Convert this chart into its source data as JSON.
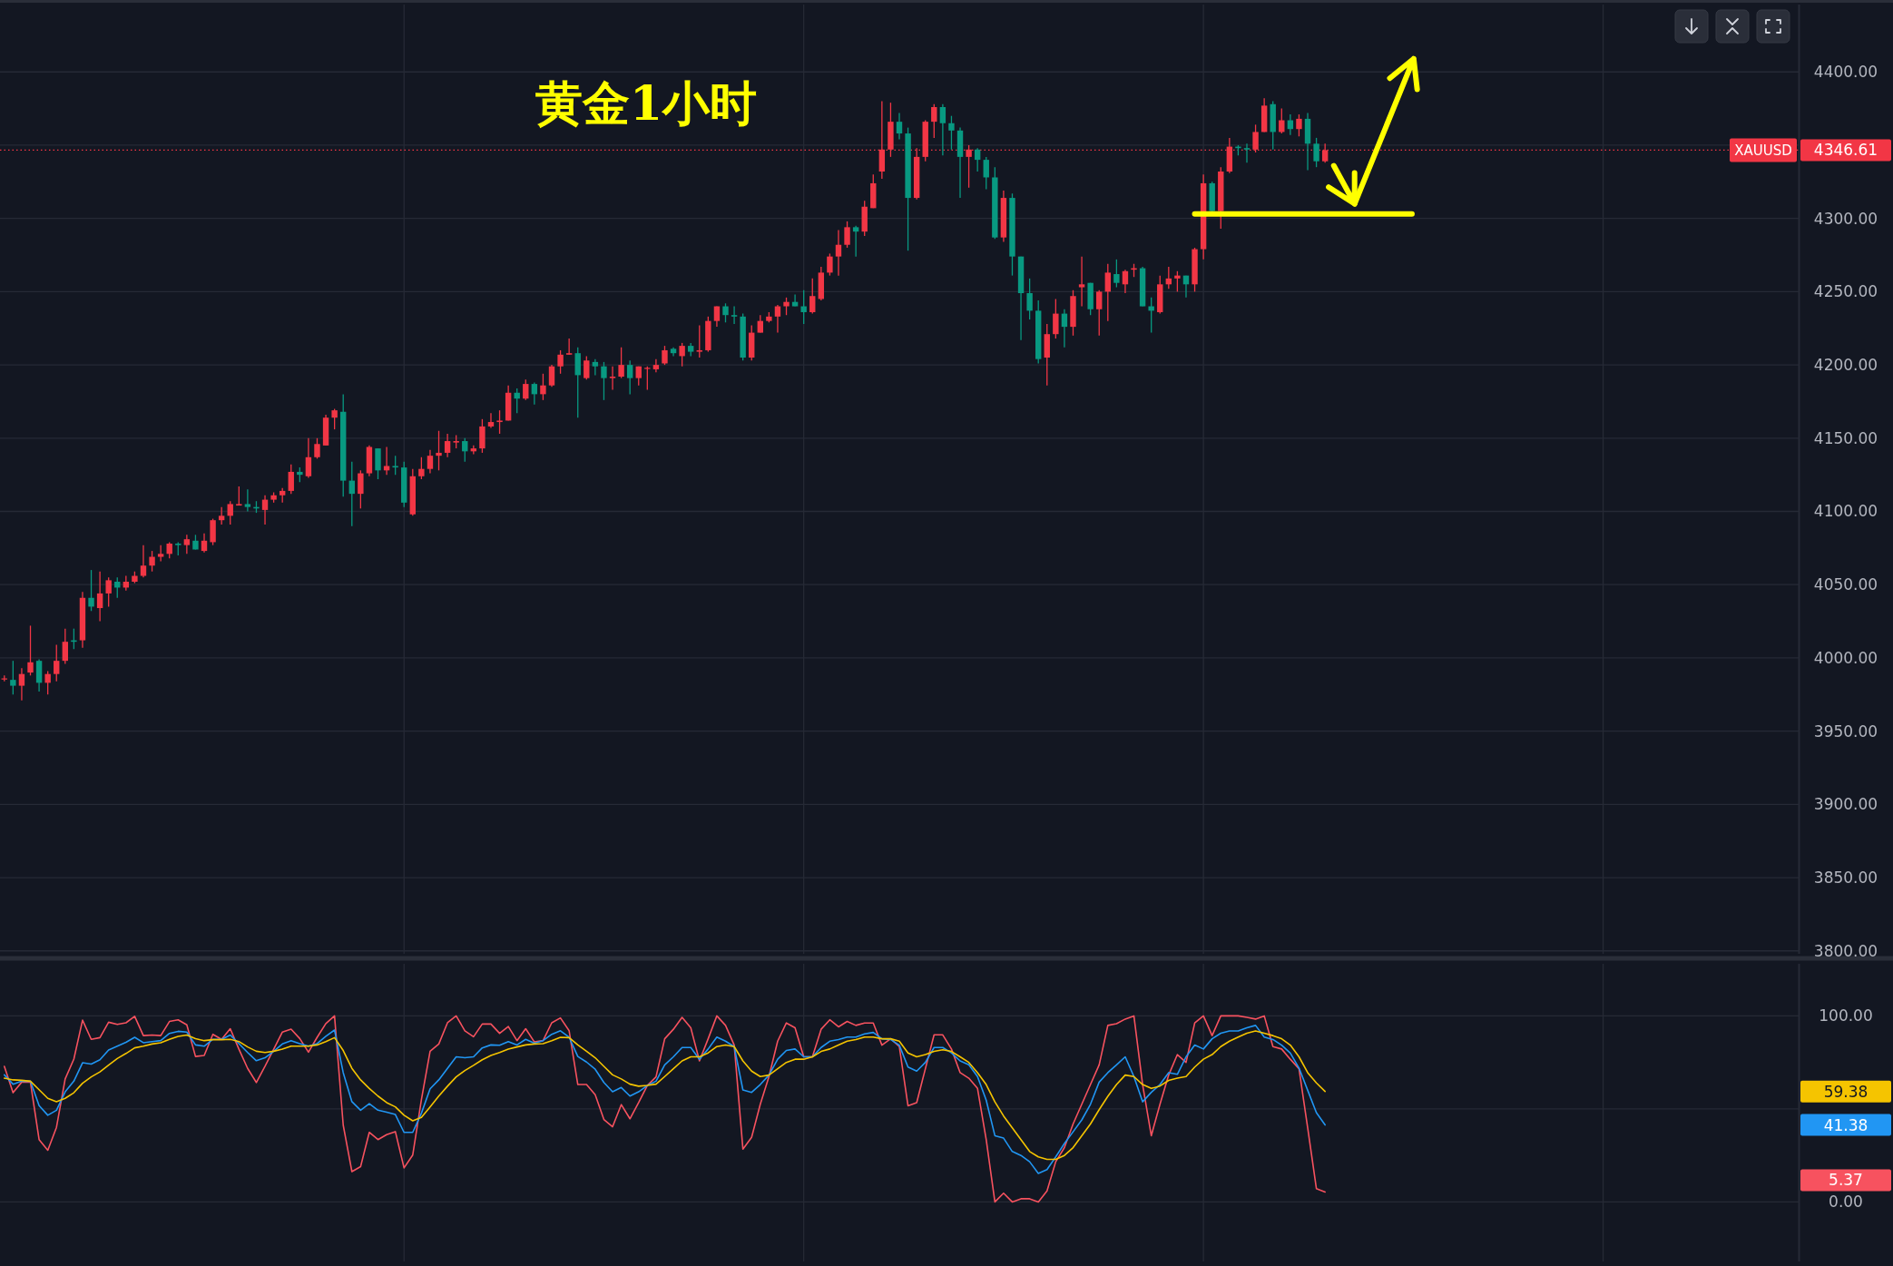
{
  "chart_data": [
    {
      "type": "candlestick",
      "title": "黄金1小时",
      "tick_labels": "y",
      "grid": true,
      "categories": [
        null,
        null,
        null,
        null,
        null,
        null,
        null,
        null,
        null,
        null,
        null,
        null,
        null,
        null,
        null,
        null,
        null,
        null,
        null,
        null,
        null,
        null,
        null,
        null,
        null,
        null,
        null,
        null,
        null,
        null,
        null,
        null,
        null,
        null,
        null,
        null,
        null,
        null,
        null,
        null,
        null,
        null,
        null,
        null,
        null,
        null,
        null,
        null,
        null,
        null,
        null,
        null,
        null,
        null,
        null,
        null,
        null,
        null,
        null,
        null,
        null,
        null,
        null,
        null,
        null,
        null,
        null,
        null,
        null,
        null,
        null,
        null,
        null,
        null,
        null,
        null,
        null,
        null,
        null,
        null,
        null,
        null,
        null,
        null,
        null,
        null,
        null,
        null,
        null,
        null,
        null,
        null,
        null,
        null,
        null,
        null,
        null,
        null,
        null,
        null,
        null,
        null,
        null,
        null,
        null,
        null,
        null,
        null,
        null,
        null,
        null,
        null,
        null,
        null,
        null,
        null,
        null,
        null,
        null,
        null,
        null,
        null,
        null,
        null,
        null,
        null,
        null,
        null,
        null,
        null,
        null,
        null,
        null,
        null,
        null,
        null,
        null,
        null,
        null,
        null,
        null,
        null,
        null,
        null,
        null,
        null,
        null,
        null,
        null,
        null,
        null,
        null,
        null,
        null,
        null,
        null,
        null,
        null,
        null,
        null,
        null,
        null,
        null,
        null,
        null,
        null,
        null,
        null,
        null,
        null,
        null,
        null,
        null,
        null,
        null,
        null,
        null,
        null,
        null,
        null,
        null,
        null,
        null,
        null,
        null,
        null,
        null,
        null,
        null,
        null,
        null,
        null,
        null,
        null,
        null,
        null,
        null,
        null,
        null,
        null,
        null,
        null,
        null,
        null,
        null,
        null,
        null
      ],
      "ohlc": [
        [
          3986,
          3988,
          3984,
          3986
        ],
        [
          3985,
          3998,
          3975,
          3981
        ],
        [
          3981,
          3993,
          3971,
          3989
        ],
        [
          3990,
          4022,
          3988,
          3997
        ],
        [
          3998,
          3999,
          3977,
          3983
        ],
        [
          3983,
          3991,
          3975,
          3989
        ],
        [
          3989,
          4009,
          3984,
          3998
        ],
        [
          3998,
          4020,
          3996,
          4011
        ],
        [
          4012,
          4020,
          4006,
          4011
        ],
        [
          4012,
          4045,
          4007,
          4041
        ],
        [
          4041,
          4060,
          4032,
          4035
        ],
        [
          4034,
          4059,
          4025,
          4044
        ],
        [
          4044,
          4055,
          4035,
          4053
        ],
        [
          4052,
          4055,
          4041,
          4048
        ],
        [
          4048,
          4056,
          4046,
          4052
        ],
        [
          4052,
          4059,
          4051,
          4056
        ],
        [
          4056,
          4077,
          4055,
          4063
        ],
        [
          4063,
          4073,
          4059,
          4069
        ],
        [
          4069,
          4077,
          4066,
          4071
        ],
        [
          4071,
          4079,
          4068,
          4078
        ],
        [
          4078,
          4079,
          4070,
          4077
        ],
        [
          4077,
          4084,
          4071,
          4081
        ],
        [
          4080,
          4084,
          4074,
          4074
        ],
        [
          4073,
          4085,
          4072,
          4080
        ],
        [
          4079,
          4095,
          4077,
          4094
        ],
        [
          4094,
          4103,
          4091,
          4097
        ],
        [
          4097,
          4107,
          4091,
          4105
        ],
        [
          4104,
          4117,
          4104,
          4105
        ],
        [
          4105,
          4115,
          4100,
          4103
        ],
        [
          4103,
          4107,
          4099,
          4102
        ],
        [
          4101,
          4111,
          4091,
          4108
        ],
        [
          4108,
          4113,
          4106,
          4111
        ],
        [
          4111,
          4116,
          4106,
          4114
        ],
        [
          4114,
          4132,
          4112,
          4127
        ],
        [
          4127,
          4130,
          4120,
          4125
        ],
        [
          4124,
          4150,
          4123,
          4137
        ],
        [
          4137,
          4150,
          4136,
          4146
        ],
        [
          4145,
          4166,
          4145,
          4164
        ],
        [
          4164,
          4170,
          4156,
          4169
        ],
        [
          4168,
          4180,
          4110,
          4121
        ],
        [
          4121,
          4134,
          4090,
          4112
        ],
        [
          4112,
          4128,
          4102,
          4126
        ],
        [
          4126,
          4145,
          4124,
          4144
        ],
        [
          4143,
          4143,
          4122,
          4128
        ],
        [
          4128,
          4144,
          4125,
          4131
        ],
        [
          4131,
          4138,
          4125,
          4130
        ],
        [
          4130,
          4134,
          4103,
          4106
        ],
        [
          4098,
          4129,
          4097,
          4124
        ],
        [
          4124,
          4137,
          4122,
          4129
        ],
        [
          4129,
          4142,
          4126,
          4138
        ],
        [
          4138,
          4155,
          4128,
          4140
        ],
        [
          4140,
          4153,
          4137,
          4148
        ],
        [
          4147,
          4152,
          4143,
          4148
        ],
        [
          4148,
          4150,
          4134,
          4141
        ],
        [
          4141,
          4145,
          4139,
          4143
        ],
        [
          4143,
          4163,
          4140,
          4158
        ],
        [
          4158,
          4167,
          4157,
          4161
        ],
        [
          4161,
          4169,
          4153,
          4162
        ],
        [
          4162,
          4186,
          4162,
          4181
        ],
        [
          4181,
          4184,
          4167,
          4177
        ],
        [
          4177,
          4190,
          4176,
          4187
        ],
        [
          4187,
          4188,
          4173,
          4180
        ],
        [
          4180,
          4194,
          4176,
          4186
        ],
        [
          4186,
          4200,
          4185,
          4199
        ],
        [
          4199,
          4210,
          4194,
          4207
        ],
        [
          4207,
          4218,
          4207,
          4208
        ],
        [
          4208,
          4212,
          4164,
          4193
        ],
        [
          4191,
          4206,
          4190,
          4203
        ],
        [
          4202,
          4204,
          4193,
          4199
        ],
        [
          4199,
          4202,
          4176,
          4191
        ],
        [
          4191,
          4199,
          4183,
          4192
        ],
        [
          4192,
          4212,
          4191,
          4200
        ],
        [
          4200,
          4203,
          4180,
          4191
        ],
        [
          4191,
          4199,
          4186,
          4199
        ],
        [
          4198,
          4199,
          4183,
          4198
        ],
        [
          4197,
          4204,
          4195,
          4200
        ],
        [
          4201,
          4213,
          4200,
          4210
        ],
        [
          4211,
          4212,
          4206,
          4208
        ],
        [
          4206,
          4215,
          4199,
          4213
        ],
        [
          4213,
          4215,
          4206,
          4209
        ],
        [
          4209,
          4227,
          4205,
          4210
        ],
        [
          4210,
          4233,
          4209,
          4230
        ],
        [
          4230,
          4240,
          4226,
          4240
        ],
        [
          4240,
          4242,
          4229,
          4234
        ],
        [
          4234,
          4240,
          4228,
          4233
        ],
        [
          4233,
          4235,
          4203,
          4205
        ],
        [
          4205,
          4227,
          4203,
          4222
        ],
        [
          4222,
          4234,
          4222,
          4230
        ],
        [
          4230,
          4236,
          4229,
          4233
        ],
        [
          4233,
          4241,
          4222,
          4240
        ],
        [
          4240,
          4246,
          4234,
          4243
        ],
        [
          4243,
          4248,
          4240,
          4240
        ],
        [
          4240,
          4251,
          4228,
          4236
        ],
        [
          4236,
          4259,
          4235,
          4247
        ],
        [
          4245,
          4267,
          4244,
          4263
        ],
        [
          4263,
          4276,
          4261,
          4274
        ],
        [
          4274,
          4292,
          4261,
          4282
        ],
        [
          4282,
          4298,
          4280,
          4294
        ],
        [
          4294,
          4295,
          4274,
          4291
        ],
        [
          4291,
          4312,
          4288,
          4308
        ],
        [
          4307,
          4330,
          4307,
          4324
        ],
        [
          4332,
          4380,
          4327,
          4347
        ],
        [
          4347,
          4379,
          4342,
          4366
        ],
        [
          4366,
          4372,
          4354,
          4358
        ],
        [
          4358,
          4362,
          4278,
          4314
        ],
        [
          4314,
          4348,
          4313,
          4342
        ],
        [
          4342,
          4367,
          4339,
          4366
        ],
        [
          4366,
          4378,
          4355,
          4376
        ],
        [
          4376,
          4378,
          4343,
          4365
        ],
        [
          4365,
          4370,
          4347,
          4360
        ],
        [
          4360,
          4362,
          4314,
          4342
        ],
        [
          4342,
          4350,
          4321,
          4347
        ],
        [
          4347,
          4348,
          4332,
          4340
        ],
        [
          4340,
          4342,
          4320,
          4328
        ],
        [
          4328,
          4335,
          4286,
          4287
        ],
        [
          4287,
          4319,
          4284,
          4314
        ],
        [
          4314,
          4317,
          4261,
          4274
        ],
        [
          4274,
          4274,
          4217,
          4249
        ],
        [
          4249,
          4259,
          4231,
          4237
        ],
        [
          4237,
          4244,
          4201,
          4204
        ],
        [
          4205,
          4228,
          4186,
          4221
        ],
        [
          4221,
          4245,
          4218,
          4235
        ],
        [
          4235,
          4238,
          4212,
          4226
        ],
        [
          4226,
          4251,
          4220,
          4247
        ],
        [
          4253,
          4274,
          4240,
          4255
        ],
        [
          4256,
          4256,
          4234,
          4238
        ],
        [
          4238,
          4251,
          4220,
          4250
        ],
        [
          4250,
          4269,
          4230,
          4263
        ],
        [
          4262,
          4272,
          4253,
          4256
        ],
        [
          4255,
          4265,
          4249,
          4264
        ],
        [
          4265,
          4269,
          4260,
          4266
        ],
        [
          4266,
          4267,
          4240,
          4240
        ],
        [
          4240,
          4246,
          4222,
          4237
        ],
        [
          4236,
          4261,
          4235,
          4255
        ],
        [
          4255,
          4267,
          4252,
          4259
        ],
        [
          4259,
          4264,
          4250,
          4261
        ],
        [
          4261,
          4261,
          4246,
          4255
        ],
        [
          4255,
          4280,
          4250,
          4279
        ],
        [
          4279,
          4330,
          4272,
          4324
        ],
        [
          4324,
          4325,
          4304,
          4305
        ],
        [
          4305,
          4335,
          4293,
          4332
        ],
        [
          4332,
          4355,
          4331,
          4349
        ],
        [
          4349,
          4350,
          4343,
          4348
        ],
        [
          4348,
          4351,
          4338,
          4347
        ],
        [
          4347,
          4364,
          4345,
          4359
        ],
        [
          4359,
          4382,
          4359,
          4377
        ],
        [
          4378,
          4380,
          4347,
          4359
        ],
        [
          4359,
          4375,
          4358,
          4367
        ],
        [
          4367,
          4371,
          4357,
          4361
        ],
        [
          4361,
          4371,
          4356,
          4368
        ],
        [
          4368,
          4372,
          4333,
          4351
        ],
        [
          4351,
          4355,
          4335,
          4339
        ],
        [
          4339,
          4351,
          4338,
          4346.61
        ],
        null,
        null,
        null,
        null,
        null,
        null,
        null,
        null,
        null,
        null,
        null,
        null,
        null,
        null,
        null,
        null,
        null,
        null,
        null,
        null,
        null,
        null,
        null,
        null,
        null,
        null,
        null,
        null,
        null,
        null,
        null,
        null,
        null,
        null,
        null,
        null,
        null,
        null,
        null,
        null,
        null,
        null,
        null,
        null,
        null,
        null,
        null,
        null,
        null,
        null,
        null,
        null,
        null,
        null
      ],
      "series": [
        {
          "type": "line",
          "color": "#ffff00",
          "values": [
            null,
            null,
            null,
            null,
            null,
            null,
            null,
            null,
            null,
            null,
            null,
            null,
            null,
            null,
            null,
            null,
            null,
            null,
            null,
            null,
            null,
            null,
            null,
            null,
            null,
            null,
            null,
            null,
            null,
            null,
            null,
            null,
            null,
            null,
            null,
            null,
            null,
            null,
            null,
            null,
            null,
            null,
            null,
            null,
            null,
            null,
            null,
            null,
            null,
            null,
            null,
            null,
            null,
            null,
            null,
            null,
            null,
            null,
            null,
            null,
            null,
            null,
            null,
            null,
            null,
            null,
            null,
            null,
            null,
            null,
            null,
            null,
            null,
            null,
            null,
            null,
            null,
            null,
            null,
            null,
            null,
            null,
            null,
            null,
            null,
            null,
            null,
            null,
            null,
            null,
            null,
            null,
            null,
            null,
            null,
            null,
            null,
            null,
            null,
            null,
            null,
            null,
            null,
            null,
            null,
            null,
            null,
            null,
            null,
            null,
            null,
            null,
            null,
            null,
            null,
            null,
            null,
            null,
            null,
            null,
            null,
            null,
            null,
            null,
            null,
            null,
            null,
            null,
            null,
            null,
            null,
            null,
            null,
            null,
            null,
            null,
            null,
            4303,
            4303,
            4303,
            4303,
            4303,
            4303,
            4303,
            4303,
            4303,
            4303,
            4303,
            4303,
            4303,
            4303,
            4303,
            4303,
            4303,
            4303,
            4303,
            4303,
            4303,
            4303,
            4303,
            4303,
            4303,
            4303,
            null,
            null,
            null,
            null,
            null,
            null,
            null,
            null,
            null,
            null,
            null,
            null,
            null,
            null,
            null,
            null,
            null,
            null,
            null,
            null,
            null,
            null,
            null,
            null,
            null,
            null,
            null,
            null,
            null,
            null,
            null,
            null,
            null,
            null,
            null,
            null,
            null,
            null,
            null,
            null,
            null,
            null,
            null,
            null
          ]
        }
      ],
      "ylim": [
        3798,
        4446
      ],
      "yticks": [
        {
          "value": 3800,
          "label": "3800.00"
        },
        {
          "value": 3850,
          "label": "3850.00"
        },
        {
          "value": 3900,
          "label": "3900.00"
        },
        {
          "value": 3950,
          "label": "3950.00"
        },
        {
          "value": 4000,
          "label": "4000.00"
        },
        {
          "value": 4050,
          "label": "4050.00"
        },
        {
          "value": 4100,
          "label": "4100.00"
        },
        {
          "value": 4150,
          "label": "4150.00"
        },
        {
          "value": 4200,
          "label": "4200.00"
        },
        {
          "value": 4250,
          "label": "4250.00"
        },
        {
          "value": 4300,
          "label": "4300.00"
        },
        {
          "value": 4350,
          "label": null
        },
        {
          "value": 4400,
          "label": "4400.00"
        }
      ],
      "ref_lines": [
        {
          "axis": "y",
          "value": 4346.61,
          "label": "XAUUSD",
          "color": "#f23645",
          "line_style": "dotted"
        }
      ],
      "annotations": [
        "4346.61"
      ]
    },
    {
      "type": "line",
      "tick_labels": "y",
      "grid": true,
      "categories": [
        null,
        null,
        null,
        null,
        null,
        null,
        null,
        null,
        null,
        null,
        null,
        null,
        null,
        null,
        null,
        null,
        null,
        null,
        null,
        null,
        null,
        null,
        null,
        null,
        null,
        null,
        null,
        null,
        null,
        null,
        null,
        null,
        null,
        null,
        null,
        null,
        null,
        null,
        null,
        null,
        null,
        null,
        null,
        null,
        null,
        null,
        null,
        null,
        null,
        null,
        null,
        null,
        null,
        null,
        null,
        null,
        null,
        null,
        null,
        null,
        null,
        null,
        null,
        null,
        null,
        null,
        null,
        null,
        null,
        null,
        null,
        null,
        null,
        null,
        null,
        null,
        null,
        null,
        null,
        null,
        null,
        null,
        null,
        null,
        null,
        null,
        null,
        null,
        null,
        null,
        null,
        null,
        null,
        null,
        null,
        null,
        null,
        null,
        null,
        null,
        null,
        null,
        null,
        null,
        null,
        null,
        null,
        null,
        null,
        null,
        null,
        null,
        null,
        null,
        null,
        null,
        null,
        null,
        null,
        null,
        null,
        null,
        null,
        null,
        null,
        null,
        null,
        null,
        null,
        null,
        null,
        null,
        null,
        null,
        null,
        null,
        null,
        null,
        null,
        null,
        null,
        null,
        null,
        null,
        null,
        null,
        null,
        null,
        null,
        null,
        null,
        null,
        null,
        null,
        null,
        null,
        null,
        null,
        null,
        null,
        null,
        null,
        null,
        null,
        null,
        null,
        null,
        null,
        null,
        null,
        null,
        null,
        null,
        null,
        null,
        null,
        null,
        null,
        null,
        null,
        null,
        null,
        null,
        null,
        null,
        null,
        null,
        null,
        null,
        null,
        null,
        null,
        null,
        null,
        null,
        null,
        null,
        null,
        null,
        null,
        null,
        null,
        null,
        null,
        null,
        null,
        null
      ],
      "series": [
        {
          "color": "#f7525f",
          "values": [
            72.9,
            58.7,
            64.4,
            64.4,
            33.5,
            27.8,
            40.1,
            66.1,
            76.8,
            97.7,
            87.4,
            88.3,
            96.6,
            95.4,
            96.3,
            99.8,
            89.4,
            89.7,
            89.4,
            97,
            97.9,
            95.2,
            78.2,
            78.7,
            90.1,
            87.4,
            93.1,
            82.1,
            71.8,
            64.2,
            72.9,
            82.1,
            91.3,
            92.9,
            87.8,
            80.5,
            88.5,
            95.9,
            100,
            41.3,
            16.3,
            19,
            37.4,
            33.5,
            36.2,
            37.8,
            18.3,
            25.2,
            55,
            81,
            84.9,
            96.3,
            100,
            92,
            88.8,
            95.6,
            95.6,
            90.6,
            94.3,
            86.7,
            93.1,
            86,
            86.7,
            96.3,
            98.9,
            92,
            63.1,
            63.1,
            57.6,
            44.3,
            40.4,
            52.3,
            44.7,
            53.4,
            62.6,
            67.2,
            87.7,
            92.8,
            99.2,
            93.6,
            75.8,
            87.7,
            100,
            94.9,
            84.3,
            28.4,
            34.7,
            52.5,
            67.4,
            86.4,
            96.2,
            93.6,
            78,
            78,
            92.8,
            97.9,
            94.1,
            97,
            94.9,
            96.2,
            96.2,
            84.3,
            87.7,
            83.5,
            51.7,
            53.4,
            71.6,
            89.8,
            89.8,
            82.2,
            69.5,
            66.5,
            61,
            33.5,
            0,
            4.7,
            0,
            1.7,
            1.7,
            0,
            5.9,
            21.6,
            29.2,
            41.9,
            52.5,
            63.1,
            73.7,
            94.9,
            95.8,
            98.3,
            100,
            63.1,
            35.6,
            52.5,
            68.2,
            79.2,
            75,
            96.2,
            100,
            89.4,
            100,
            100,
            100,
            99.2,
            98.3,
            100,
            83.5,
            82.2,
            76.7,
            71.6,
            39.8,
            7.2,
            5.37,
            null,
            null,
            null,
            null,
            null,
            null,
            null,
            null,
            null,
            null,
            null,
            null,
            null,
            null,
            null,
            null,
            null,
            null,
            null,
            null,
            null,
            null,
            null,
            null,
            null,
            null,
            null,
            null,
            null,
            null,
            null,
            null,
            null,
            null,
            null,
            null,
            null,
            null,
            null,
            null,
            null,
            null,
            null,
            null,
            null,
            null,
            null,
            null,
            null,
            null,
            null,
            null,
            null,
            null
          ]
        },
        {
          "color": "#2196f3",
          "values": [
            68.3,
            63.3,
            64.9,
            64.9,
            51.8,
            46.6,
            49.3,
            59.2,
            64.9,
            74.8,
            74.1,
            76.4,
            81.7,
            83.7,
            85.8,
            88.5,
            85.6,
            86.2,
            86.7,
            90.6,
            91.7,
            91.3,
            84.4,
            83.7,
            87.4,
            87.4,
            89.7,
            85.1,
            80.3,
            75.9,
            77.5,
            81,
            84.9,
            86.7,
            85.1,
            83.7,
            85.1,
            89,
            92.4,
            69.5,
            53.9,
            49.3,
            52.8,
            49.3,
            48.2,
            47,
            37.4,
            37.4,
            47.7,
            60.8,
            65.6,
            71.8,
            78,
            77.5,
            78,
            82.8,
            84.4,
            84.2,
            86.2,
            84.4,
            87.4,
            85.3,
            86.7,
            90.1,
            92,
            88.5,
            78.2,
            75.2,
            71.3,
            64.2,
            59.2,
            61.5,
            56.9,
            59.2,
            62.6,
            64.9,
            73.7,
            78,
            83,
            83,
            76.7,
            82.2,
            88.6,
            86.4,
            83.5,
            60.2,
            58.9,
            63.1,
            68.2,
            76.7,
            81.4,
            82.2,
            78,
            78,
            83,
            86.4,
            87.3,
            88.6,
            88.6,
            90.3,
            91.1,
            87.7,
            87.3,
            84.3,
            72.5,
            70.3,
            75,
            83,
            83,
            80.1,
            75.8,
            73.7,
            67.4,
            54.7,
            35.6,
            34.3,
            27.1,
            25,
            21.6,
            15.3,
            17.4,
            24.2,
            31.4,
            37.7,
            44.1,
            52.5,
            64.4,
            69.5,
            73.7,
            78,
            67.4,
            53.8,
            58.9,
            63.1,
            69.5,
            68.6,
            78,
            84.3,
            82.2,
            87.7,
            90.7,
            91.9,
            91.9,
            93.6,
            94.9,
            88.6,
            87.3,
            84.3,
            80,
            72,
            60,
            48,
            41.38,
            null,
            null,
            null,
            null,
            null,
            null,
            null,
            null,
            null,
            null,
            null,
            null,
            null,
            null,
            null,
            null,
            null,
            null,
            null,
            null,
            null,
            null,
            null,
            null,
            null,
            null,
            null,
            null,
            null,
            null,
            null,
            null,
            null,
            null,
            null,
            null,
            null,
            null,
            null,
            null,
            null,
            null,
            null,
            null,
            null,
            null,
            null,
            null,
            null,
            null,
            null,
            null,
            null,
            null
          ]
        },
        {
          "color": "#f5c400",
          "values": [
            66.5,
            65.6,
            65.4,
            64.9,
            60.3,
            55.7,
            53.9,
            55.7,
            58.7,
            63.8,
            67.2,
            69.9,
            73.6,
            77.1,
            79.8,
            82.8,
            83.7,
            84.9,
            85.6,
            87.4,
            89,
            89.7,
            87.8,
            86.7,
            87.2,
            87.2,
            87.4,
            86.2,
            83.3,
            81,
            80.3,
            81,
            82.1,
            83.7,
            83.7,
            83.7,
            84.4,
            86.2,
            88.3,
            81.4,
            71.8,
            65.6,
            61,
            56.9,
            53.4,
            51.1,
            46.6,
            43.6,
            45.4,
            51.1,
            56.9,
            62.2,
            67.2,
            70.6,
            73.4,
            76.4,
            78.7,
            80.3,
            82.1,
            83.3,
            84.4,
            84.9,
            85.1,
            86.7,
            88.5,
            88.3,
            84.4,
            81,
            77.5,
            72.9,
            68.3,
            66.1,
            63.3,
            62.2,
            62.6,
            63.3,
            67.4,
            71.6,
            75.8,
            78,
            78,
            80.1,
            83.5,
            84.3,
            83.5,
            75.8,
            70.3,
            67.4,
            68.2,
            71.6,
            75,
            76.7,
            76.7,
            78,
            80.9,
            82.2,
            84.3,
            86.4,
            87.3,
            88.6,
            88.6,
            87.7,
            87.7,
            86.4,
            80.1,
            78,
            79.2,
            80.9,
            81.8,
            80.9,
            78,
            75,
            69.5,
            63.1,
            53.8,
            46.2,
            39.8,
            33.5,
            27.1,
            24.2,
            22.9,
            22.9,
            25,
            29.2,
            35.6,
            41.9,
            49.6,
            56.8,
            63.1,
            68.2,
            67.4,
            63.1,
            61,
            62.3,
            65.3,
            66.5,
            67.4,
            72.5,
            76.7,
            79.2,
            83.5,
            86.4,
            88.6,
            90.7,
            91.9,
            90.7,
            89.4,
            87.7,
            84.3,
            78,
            69.5,
            64,
            59.38,
            null,
            null,
            null,
            null,
            null,
            null,
            null,
            null,
            null,
            null,
            null,
            null,
            null,
            null,
            null,
            null,
            null,
            null,
            null,
            null,
            null,
            null,
            null,
            null,
            null,
            null,
            null,
            null,
            null,
            null,
            null,
            null,
            null,
            null,
            null,
            null,
            null,
            null,
            null,
            null,
            null,
            null,
            null,
            null,
            null,
            null,
            null,
            null,
            null,
            null,
            null,
            null,
            null,
            null
          ]
        }
      ],
      "ylim": [
        -32,
        128
      ],
      "yticks": [
        {
          "value": 100,
          "label": "100.00"
        },
        {
          "value": 50,
          "label": null
        },
        {
          "value": 0,
          "label": "0.00"
        }
      ],
      "annotations": [
        "5.37",
        "41.38",
        "59.38"
      ]
    }
  ]
}
